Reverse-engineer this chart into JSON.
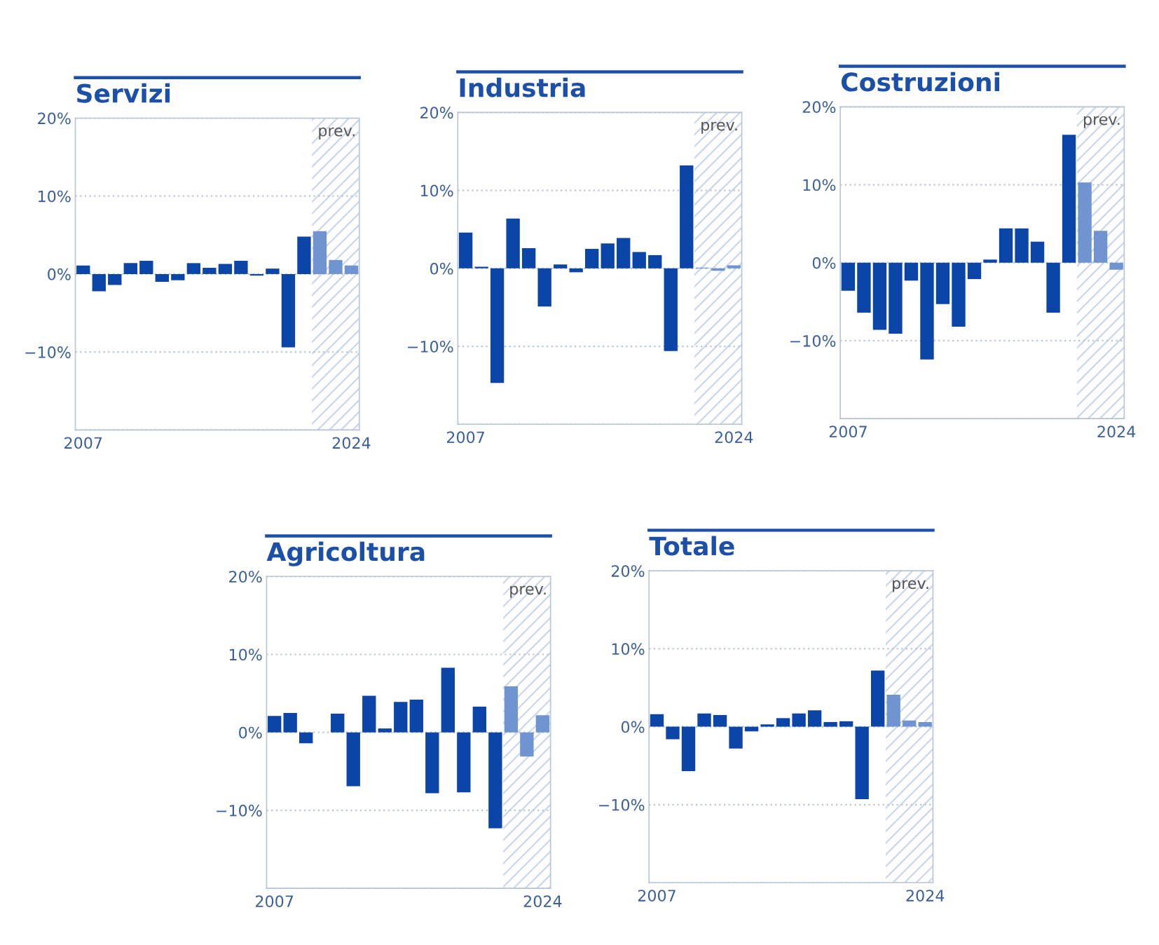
{
  "chart_data": [
    {
      "type": "bar",
      "title": "Servizi",
      "x": [
        2007,
        2008,
        2009,
        2010,
        2011,
        2012,
        2013,
        2014,
        2015,
        2016,
        2017,
        2018,
        2019,
        2020,
        2021,
        2022,
        2023,
        2024
      ],
      "values": [
        1.1,
        -2.2,
        -1.4,
        1.4,
        1.7,
        -1.0,
        -0.8,
        1.4,
        0.8,
        1.3,
        1.7,
        -0.2,
        0.7,
        -9.4,
        4.8,
        5.5,
        1.8,
        1.1
      ],
      "colors": [
        "#0b45a8",
        "#0b45a8",
        "#0b45a8",
        "#0b45a8",
        "#0b45a8",
        "#0b45a8",
        "#0b45a8",
        "#0b45a8",
        "#0b45a8",
        "#0b45a8",
        "#0b45a8",
        "#0b45a8",
        "#0b45a8",
        "#0b45a8",
        "#0b45a8",
        "#7094d0",
        "#7094d0",
        "#7094d0"
      ],
      "xlim": [
        2006.5,
        2024.5
      ],
      "xticks": [
        2007,
        2024
      ],
      "ylim": [
        -20,
        20
      ],
      "yticks": [
        {
          "value": -20,
          "label": null
        },
        {
          "value": -10,
          "label": "−10%"
        },
        {
          "value": 0,
          "label": "0%"
        },
        {
          "value": 10,
          "label": "10%"
        },
        {
          "value": 20,
          "label": "20%"
        }
      ],
      "grid": "y",
      "bands": [
        {
          "axis": "x",
          "from": 2021.5,
          "to": 2024.5,
          "label": "prev.",
          "color": "#c9d6ec"
        }
      ]
    },
    {
      "type": "bar",
      "title": "Industria",
      "x": [
        2007,
        2008,
        2009,
        2010,
        2011,
        2012,
        2013,
        2014,
        2015,
        2016,
        2017,
        2018,
        2019,
        2020,
        2021,
        2022,
        2023,
        2024
      ],
      "values": [
        4.6,
        0.2,
        -14.7,
        6.4,
        2.6,
        -4.9,
        0.5,
        -0.5,
        2.5,
        3.2,
        3.9,
        2.1,
        1.7,
        -10.6,
        13.2,
        0.1,
        -0.3,
        0.4
      ],
      "colors": [
        "#0b45a8",
        "#0b45a8",
        "#0b45a8",
        "#0b45a8",
        "#0b45a8",
        "#0b45a8",
        "#0b45a8",
        "#0b45a8",
        "#0b45a8",
        "#0b45a8",
        "#0b45a8",
        "#0b45a8",
        "#0b45a8",
        "#0b45a8",
        "#0b45a8",
        "#7094d0",
        "#7094d0",
        "#7094d0"
      ],
      "xlim": [
        2006.5,
        2024.5
      ],
      "xticks": [
        2007,
        2024
      ],
      "ylim": [
        -20,
        20
      ],
      "yticks": [
        {
          "value": -20,
          "label": null
        },
        {
          "value": -10,
          "label": "−10%"
        },
        {
          "value": 0,
          "label": "0%"
        },
        {
          "value": 10,
          "label": "10%"
        },
        {
          "value": 20,
          "label": "20%"
        }
      ],
      "grid": "y",
      "bands": [
        {
          "axis": "x",
          "from": 2021.5,
          "to": 2024.5,
          "label": "prev.",
          "color": "#c9d6ec"
        }
      ]
    },
    {
      "type": "bar",
      "title": "Costruzioni",
      "x": [
        2007,
        2008,
        2009,
        2010,
        2011,
        2012,
        2013,
        2014,
        2015,
        2016,
        2017,
        2018,
        2019,
        2020,
        2021,
        2022,
        2023,
        2024
      ],
      "values": [
        -3.6,
        -6.4,
        -8.6,
        -9.1,
        -2.3,
        -12.4,
        -5.3,
        -8.2,
        -2.1,
        0.4,
        4.4,
        4.4,
        2.7,
        -6.4,
        16.4,
        10.3,
        4.1,
        -0.9
      ],
      "colors": [
        "#0b45a8",
        "#0b45a8",
        "#0b45a8",
        "#0b45a8",
        "#0b45a8",
        "#0b45a8",
        "#0b45a8",
        "#0b45a8",
        "#0b45a8",
        "#0b45a8",
        "#0b45a8",
        "#0b45a8",
        "#0b45a8",
        "#0b45a8",
        "#0b45a8",
        "#7094d0",
        "#7094d0",
        "#7094d0"
      ],
      "xlim": [
        2006.5,
        2024.5
      ],
      "xticks": [
        2007,
        2024
      ],
      "ylim": [
        -20,
        20
      ],
      "yticks": [
        {
          "value": -20,
          "label": null
        },
        {
          "value": -10,
          "label": "−10%"
        },
        {
          "value": 0,
          "label": "0%"
        },
        {
          "value": 10,
          "label": "10%"
        },
        {
          "value": 20,
          "label": "20%"
        }
      ],
      "grid": "y",
      "bands": [
        {
          "axis": "x",
          "from": 2021.5,
          "to": 2024.5,
          "label": "prev.",
          "color": "#c9d6ec"
        }
      ]
    },
    {
      "type": "bar",
      "title": "Agricoltura",
      "x": [
        2007,
        2008,
        2009,
        2010,
        2011,
        2012,
        2013,
        2014,
        2015,
        2016,
        2017,
        2018,
        2019,
        2020,
        2021,
        2022,
        2023,
        2024
      ],
      "values": [
        2.1,
        2.5,
        -1.4,
        0,
        2.4,
        -6.9,
        4.7,
        0.5,
        3.9,
        4.2,
        -7.8,
        8.3,
        -7.7,
        3.3,
        -12.3,
        5.9,
        -3.1,
        2.2
      ],
      "colors": [
        "#0b45a8",
        "#0b45a8",
        "#0b45a8",
        "#0b45a8",
        "#0b45a8",
        "#0b45a8",
        "#0b45a8",
        "#0b45a8",
        "#0b45a8",
        "#0b45a8",
        "#0b45a8",
        "#0b45a8",
        "#0b45a8",
        "#0b45a8",
        "#0b45a8",
        "#7094d0",
        "#7094d0",
        "#7094d0"
      ],
      "xlim": [
        2006.5,
        2024.5
      ],
      "xticks": [
        2007,
        2024
      ],
      "ylim": [
        -20,
        20
      ],
      "yticks": [
        {
          "value": -20,
          "label": null
        },
        {
          "value": -10,
          "label": "−10%"
        },
        {
          "value": 0,
          "label": "0%"
        },
        {
          "value": 10,
          "label": "10%"
        },
        {
          "value": 20,
          "label": "20%"
        }
      ],
      "grid": "y",
      "bands": [
        {
          "axis": "x",
          "from": 2021.5,
          "to": 2024.5,
          "label": "prev.",
          "color": "#c9d6ec"
        }
      ]
    },
    {
      "type": "bar",
      "title": "Totale",
      "x": [
        2007,
        2008,
        2009,
        2010,
        2011,
        2012,
        2013,
        2014,
        2015,
        2016,
        2017,
        2018,
        2019,
        2020,
        2021,
        2022,
        2023,
        2024
      ],
      "values": [
        1.6,
        -1.6,
        -5.7,
        1.7,
        1.5,
        -2.8,
        -0.6,
        0.3,
        1.1,
        1.7,
        2.1,
        0.6,
        0.7,
        -9.3,
        7.2,
        4.1,
        0.8,
        0.6
      ],
      "colors": [
        "#0b45a8",
        "#0b45a8",
        "#0b45a8",
        "#0b45a8",
        "#0b45a8",
        "#0b45a8",
        "#0b45a8",
        "#0b45a8",
        "#0b45a8",
        "#0b45a8",
        "#0b45a8",
        "#0b45a8",
        "#0b45a8",
        "#0b45a8",
        "#0b45a8",
        "#7094d0",
        "#7094d0",
        "#7094d0"
      ],
      "xlim": [
        2006.5,
        2024.5
      ],
      "xticks": [
        2007,
        2024
      ],
      "ylim": [
        -20,
        20
      ],
      "yticks": [
        {
          "value": -20,
          "label": null
        },
        {
          "value": -10,
          "label": "−10%"
        },
        {
          "value": 0,
          "label": "0%"
        },
        {
          "value": 10,
          "label": "10%"
        },
        {
          "value": 20,
          "label": "20%"
        }
      ],
      "grid": "y",
      "bands": [
        {
          "axis": "x",
          "from": 2021.5,
          "to": 2024.5,
          "label": "prev.",
          "color": "#c9d6ec"
        }
      ]
    }
  ]
}
